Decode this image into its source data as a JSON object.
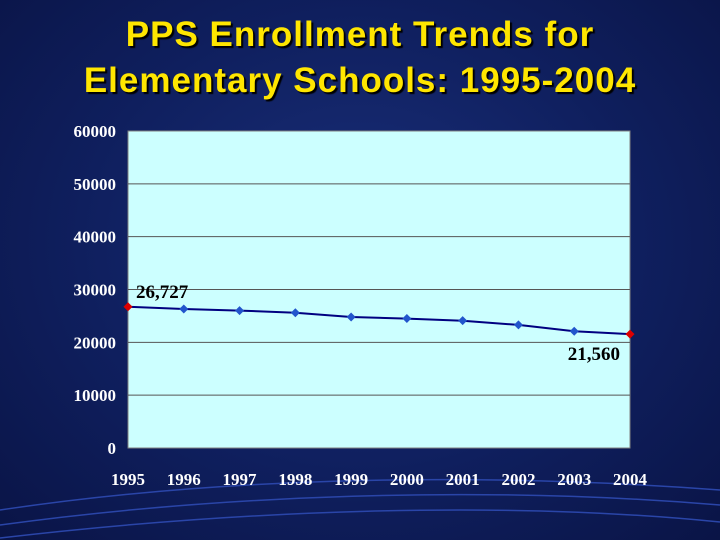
{
  "title_line1": "PPS Enrollment Trends for",
  "title_line2": "Elementary Schools: 1995-2004",
  "colors": {
    "background": "#0f1f5e",
    "title": "#ffe600",
    "plot_area": "#ccffff",
    "line": "#000080",
    "marker": "#2255cc",
    "endpoint_marker": "#dd0000"
  },
  "chart_data": {
    "type": "line",
    "title": "PPS Enrollment Trends for Elementary Schools: 1995-2004",
    "xlabel": "",
    "ylabel": "",
    "categories": [
      "1995",
      "1996",
      "1997",
      "1998",
      "1999",
      "2000",
      "2001",
      "2002",
      "2003",
      "2004"
    ],
    "series": [
      {
        "values": [
          26727,
          26300,
          26000,
          25600,
          24800,
          24500,
          24100,
          23300,
          22100,
          21560
        ]
      }
    ],
    "ylim": [
      0,
      60000
    ],
    "yticks": [
      "0",
      "10000",
      "20000",
      "30000",
      "40000",
      "50000",
      "60000"
    ],
    "data_labels": [
      {
        "index": 0,
        "text": "26,727"
      },
      {
        "index": 9,
        "text": "21,560"
      }
    ],
    "grid": true,
    "legend": "none"
  }
}
